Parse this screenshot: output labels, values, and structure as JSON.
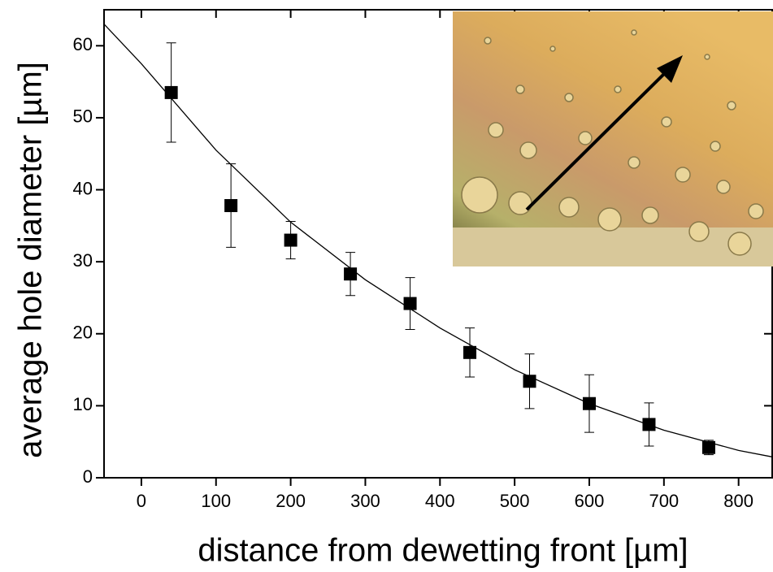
{
  "chart_data": {
    "type": "scatter",
    "xlabel": "distance from dewetting front [µm]",
    "ylabel": "average hole diameter [µm]",
    "x": [
      40,
      120,
      200,
      280,
      360,
      440,
      520,
      600,
      680,
      760
    ],
    "series": [
      {
        "values": [
          53.5,
          37.8,
          33.0,
          28.3,
          24.2,
          17.4,
          13.4,
          10.3,
          7.4,
          4.2
        ],
        "errors": [
          6.9,
          5.8,
          2.6,
          3.0,
          3.6,
          3.4,
          3.8,
          4.0,
          3.0,
          1.0
        ],
        "color": "#000000"
      }
    ],
    "fit": {
      "x": [
        -50,
        0,
        100,
        200,
        300,
        400,
        500,
        600,
        700,
        800,
        845
      ],
      "values": [
        63.0,
        57.5,
        45.5,
        35.5,
        27.5,
        20.8,
        15.0,
        10.3,
        6.6,
        3.8,
        2.9
      ],
      "color": "#000000"
    },
    "xlim": [
      -50,
      845
    ],
    "ylim": [
      0,
      65
    ],
    "xticks": [
      0,
      100,
      200,
      300,
      400,
      500,
      600,
      700,
      800
    ],
    "yticks": [
      0,
      10,
      20,
      30,
      40,
      50,
      60
    ]
  }
}
